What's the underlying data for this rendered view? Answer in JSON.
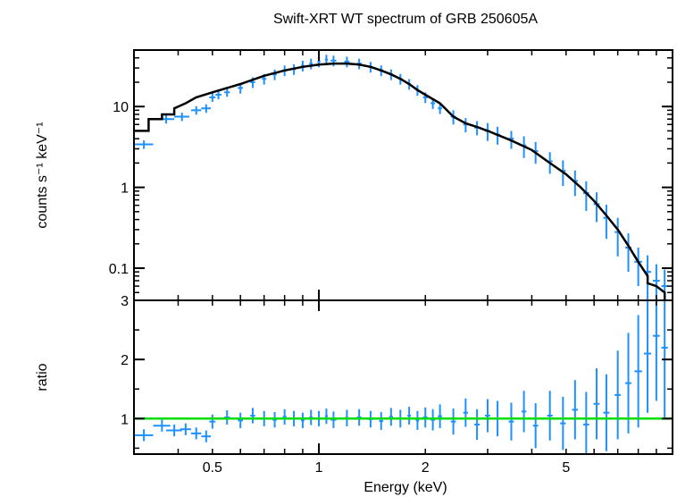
{
  "chart_data": [
    {
      "panel": "spectrum",
      "type": "scatter",
      "title": "Swift-XRT WT spectrum of GRB 250605A",
      "xlabel": "Energy (keV)",
      "ylabel": "counts s⁻¹ keV⁻¹",
      "xscale": "log",
      "yscale": "log",
      "xlim": [
        0.3,
        10
      ],
      "ylim": [
        0.04,
        50
      ],
      "yticks": [
        {
          "v": 10,
          "label": "10"
        },
        {
          "v": 1,
          "label": "1"
        },
        {
          "v": 0.1,
          "label": "0.1"
        }
      ],
      "data_color": "#1e90ff",
      "model_color": "#000000",
      "series": [
        {
          "kind": "data",
          "x": [
            0.32,
            0.37,
            0.41,
            0.45,
            0.48,
            0.5,
            0.52,
            0.55,
            0.6,
            0.65,
            0.7,
            0.75,
            0.8,
            0.85,
            0.9,
            0.95,
            1.0,
            1.05,
            1.1,
            1.2,
            1.3,
            1.4,
            1.5,
            1.6,
            1.7,
            1.8,
            1.9,
            2.0,
            2.1,
            2.2,
            2.4,
            2.6,
            2.8,
            3.0,
            3.2,
            3.5,
            3.8,
            4.1,
            4.5,
            4.9,
            5.3,
            5.7,
            6.1,
            6.5,
            7.0,
            7.5,
            8.0,
            8.5,
            9.0,
            9.5
          ],
          "y": [
            3.4,
            7.0,
            7.5,
            9.0,
            9.5,
            13,
            14,
            15,
            17,
            20,
            22,
            25,
            28,
            29,
            32,
            34,
            36,
            38,
            37,
            36,
            34,
            31,
            28,
            25,
            22,
            19,
            16,
            13,
            11,
            9.5,
            7.5,
            6.0,
            5.5,
            5.0,
            4.5,
            4.0,
            3.3,
            2.8,
            2.1,
            1.6,
            1.2,
            0.85,
            0.62,
            0.42,
            0.28,
            0.18,
            0.12,
            0.09,
            0.07,
            0.06
          ],
          "xerr": [
            0.02,
            0.02,
            0.02,
            0.015,
            0.015,
            0.01,
            0.01,
            0.01,
            0.01,
            0.01,
            0.01,
            0.01,
            0.01,
            0.01,
            0.01,
            0.01,
            0.01,
            0.01,
            0.02,
            0.02,
            0.02,
            0.02,
            0.02,
            0.02,
            0.02,
            0.02,
            0.02,
            0.03,
            0.03,
            0.03,
            0.04,
            0.04,
            0.05,
            0.05,
            0.05,
            0.06,
            0.06,
            0.07,
            0.08,
            0.09,
            0.1,
            0.11,
            0.12,
            0.13,
            0.14,
            0.15,
            0.2,
            0.2,
            0.2,
            0.2
          ],
          "yerr_frac": [
            0.12,
            0.12,
            0.12,
            0.12,
            0.12,
            0.12,
            0.12,
            0.12,
            0.15,
            0.15,
            0.15,
            0.15,
            0.15,
            0.15,
            0.15,
            0.15,
            0.15,
            0.15,
            0.15,
            0.15,
            0.15,
            0.15,
            0.15,
            0.15,
            0.15,
            0.15,
            0.15,
            0.15,
            0.15,
            0.15,
            0.2,
            0.2,
            0.2,
            0.25,
            0.25,
            0.25,
            0.3,
            0.3,
            0.3,
            0.35,
            0.35,
            0.4,
            0.4,
            0.45,
            0.5,
            0.5,
            0.5,
            0.6,
            0.6,
            0.6
          ]
        },
        {
          "kind": "model",
          "x": [
            0.3,
            0.33,
            0.33,
            0.36,
            0.36,
            0.39,
            0.39,
            0.42,
            0.45,
            0.5,
            0.6,
            0.7,
            0.8,
            0.9,
            1.0,
            1.1,
            1.2,
            1.3,
            1.4,
            1.5,
            1.6,
            1.7,
            1.8,
            1.9,
            2.0,
            2.2,
            2.4,
            2.6,
            2.8,
            3.0,
            3.5,
            4.0,
            4.5,
            5.0,
            5.5,
            6.0,
            6.5,
            7.0,
            7.5,
            8.0,
            8.5,
            8.5,
            9.0,
            9.5,
            9.5
          ],
          "y": [
            5.0,
            5.0,
            7.0,
            7.0,
            8.0,
            8.0,
            9.5,
            11,
            13,
            15,
            19,
            24,
            28,
            31,
            33,
            34,
            34,
            33,
            31,
            28,
            25,
            22,
            19,
            16,
            14,
            11,
            7.5,
            6.2,
            5.6,
            5.0,
            3.8,
            2.9,
            2.0,
            1.45,
            1.0,
            0.68,
            0.45,
            0.3,
            0.19,
            0.12,
            0.08,
            0.065,
            0.06,
            0.05,
            0.04
          ]
        }
      ]
    },
    {
      "panel": "ratio",
      "type": "scatter",
      "xlabel": "Energy (keV)",
      "ylabel": "ratio",
      "xscale": "log",
      "yscale": "linear",
      "xlim": [
        0.3,
        10
      ],
      "ylim": [
        0.4,
        3.0
      ],
      "yticks": [
        {
          "v": 3,
          "label": "3"
        },
        {
          "v": 2,
          "label": "2"
        },
        {
          "v": 1,
          "label": "1"
        }
      ],
      "xticks": [
        {
          "v": 0.5,
          "label": "0.5"
        },
        {
          "v": 1,
          "label": "1"
        },
        {
          "v": 2,
          "label": "2"
        },
        {
          "v": 5,
          "label": "5"
        }
      ],
      "reference_line": {
        "value": 1.0,
        "color": "#00dd00"
      },
      "data_color": "#1e90ff",
      "series": [
        {
          "kind": "ratio",
          "x": [
            0.32,
            0.36,
            0.39,
            0.42,
            0.45,
            0.48,
            0.5,
            0.55,
            0.6,
            0.65,
            0.7,
            0.75,
            0.8,
            0.85,
            0.9,
            0.95,
            1.0,
            1.05,
            1.1,
            1.2,
            1.3,
            1.4,
            1.5,
            1.6,
            1.7,
            1.8,
            1.9,
            2.0,
            2.1,
            2.2,
            2.4,
            2.6,
            2.8,
            3.0,
            3.2,
            3.5,
            3.8,
            4.1,
            4.5,
            4.9,
            5.3,
            5.7,
            6.1,
            6.5,
            7.0,
            7.5,
            8.0,
            8.5,
            9.0,
            9.5
          ],
          "y": [
            0.72,
            0.88,
            0.8,
            0.82,
            0.75,
            0.7,
            0.95,
            1.02,
            0.97,
            1.05,
            1.0,
            0.98,
            1.03,
            1.0,
            0.97,
            1.02,
            1.0,
            1.04,
            0.98,
            1.01,
            1.02,
            0.99,
            0.96,
            1.03,
            1.0,
            1.05,
            0.97,
            1.02,
            0.98,
            1.04,
            0.95,
            1.1,
            0.9,
            1.05,
            1.0,
            0.95,
            1.12,
            0.88,
            1.05,
            0.92,
            1.15,
            0.9,
            1.25,
            1.1,
            1.4,
            1.6,
            1.8,
            2.1,
            2.4,
            2.2
          ],
          "xerr": [
            0.02,
            0.02,
            0.02,
            0.015,
            0.015,
            0.015,
            0.01,
            0.01,
            0.01,
            0.01,
            0.01,
            0.01,
            0.01,
            0.01,
            0.01,
            0.01,
            0.01,
            0.01,
            0.02,
            0.02,
            0.02,
            0.02,
            0.02,
            0.02,
            0.02,
            0.02,
            0.02,
            0.03,
            0.03,
            0.03,
            0.04,
            0.04,
            0.05,
            0.05,
            0.05,
            0.06,
            0.06,
            0.07,
            0.08,
            0.09,
            0.1,
            0.11,
            0.12,
            0.13,
            0.14,
            0.15,
            0.2,
            0.2,
            0.2,
            0.2
          ],
          "yerr": [
            0.1,
            0.1,
            0.1,
            0.1,
            0.1,
            0.1,
            0.12,
            0.12,
            0.13,
            0.13,
            0.13,
            0.13,
            0.13,
            0.13,
            0.13,
            0.13,
            0.13,
            0.13,
            0.14,
            0.14,
            0.14,
            0.14,
            0.15,
            0.15,
            0.15,
            0.15,
            0.16,
            0.17,
            0.18,
            0.2,
            0.22,
            0.24,
            0.26,
            0.28,
            0.3,
            0.32,
            0.35,
            0.38,
            0.42,
            0.45,
            0.5,
            0.55,
            0.6,
            0.65,
            0.75,
            0.85,
            0.95,
            1.0,
            1.1,
            1.2
          ]
        }
      ]
    }
  ]
}
